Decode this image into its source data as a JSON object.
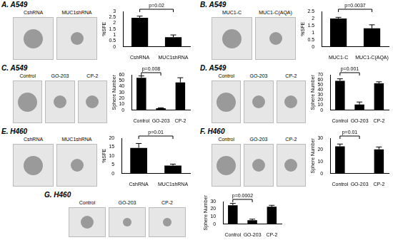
{
  "chart_data": [
    {
      "type": "bar",
      "title": "A. A549",
      "categories": [
        "CshRNA",
        "MUC1shRNA"
      ],
      "values": [
        2.45,
        0.8
      ],
      "errors": [
        0.15,
        0.2
      ],
      "color": "#000000",
      "ylabel": "%SFE",
      "ylim": [
        0,
        3
      ],
      "yticks": [
        0,
        0.5,
        1,
        1.5,
        2,
        2.5,
        3
      ],
      "annotations": [
        {
          "text": "p=0.02",
          "from": "CshRNA",
          "to": "MUC1shRNA"
        }
      ]
    },
    {
      "type": "bar",
      "title": "B. A549",
      "categories": [
        "MUC1-C",
        "MUC1-C(AQA)"
      ],
      "values": [
        2.0,
        1.3
      ],
      "errors": [
        0.08,
        0.25
      ],
      "color": "#000000",
      "ylabel": "%SFE",
      "ylim": [
        0,
        2.5
      ],
      "yticks": [
        0,
        0.5,
        1,
        1.5,
        2,
        2.5
      ],
      "annotations": [
        {
          "text": "p=0.0037",
          "from": "MUC1-C",
          "to": "MUC1-C(AQA)"
        }
      ]
    },
    {
      "type": "bar",
      "title": "C. A549",
      "categories": [
        "Control",
        "GO-203",
        "CP-2"
      ],
      "values": [
        55,
        3,
        47
      ],
      "errors": [
        3,
        1,
        8
      ],
      "color": "#000000",
      "ylabel": "Sphere Number",
      "ylim": [
        0,
        60
      ],
      "yticks": [
        0,
        10,
        20,
        30,
        40,
        50,
        60
      ],
      "annotations": [
        {
          "text": "p=0.008",
          "from": "Control",
          "to": "GO-203"
        }
      ]
    },
    {
      "type": "bar",
      "title": "D. A549",
      "categories": [
        "Control",
        "GO-203",
        "CP-2"
      ],
      "values": [
        58,
        11,
        53
      ],
      "errors": [
        4,
        5,
        3
      ],
      "color": "#000000",
      "ylabel": "Sphere Number",
      "ylim": [
        0,
        70
      ],
      "yticks": [
        0,
        10,
        20,
        30,
        40,
        50,
        60,
        70
      ],
      "annotations": [
        {
          "text": "p=0.001",
          "from": "Control",
          "to": "GO-203"
        }
      ]
    },
    {
      "type": "bar",
      "title": "E. H460",
      "categories": [
        "CshRNA",
        "MUC1shRNA"
      ],
      "values": [
        14.5,
        4.5
      ],
      "errors": [
        2.5,
        0.8
      ],
      "color": "#000000",
      "ylabel": "%SFE",
      "ylim": [
        0,
        20
      ],
      "yticks": [
        0,
        5,
        10,
        15,
        20
      ],
      "annotations": [
        {
          "text": "p=0.01",
          "from": "CshRNA",
          "to": "MUC1shRNA"
        }
      ]
    },
    {
      "type": "bar",
      "title": "F. H460",
      "categories": [
        "Control",
        "GO-203",
        "CP-2"
      ],
      "values": [
        23,
        0,
        20.5
      ],
      "errors": [
        2,
        0,
        2
      ],
      "color": "#000000",
      "ylabel": "Sphere Number",
      "ylim": [
        0,
        30
      ],
      "yticks": [
        0,
        10,
        20,
        30
      ],
      "annotations": [
        {
          "text": "p=0.01",
          "from": "Control",
          "to": "GO-203"
        }
      ]
    },
    {
      "type": "bar",
      "title": "G. H460",
      "categories": [
        "Control",
        "GO-203",
        "CP-2"
      ],
      "values": [
        25,
        5,
        23
      ],
      "errors": [
        2.5,
        1.5,
        2
      ],
      "color": "#000000",
      "ylabel": "Sphere Number",
      "ylim": [
        0,
        30
      ],
      "yticks": [
        0,
        10,
        20,
        30
      ],
      "annotations": [
        {
          "text": "p=0.0002",
          "from": "Control",
          "to": "GO-203"
        }
      ]
    }
  ]
}
